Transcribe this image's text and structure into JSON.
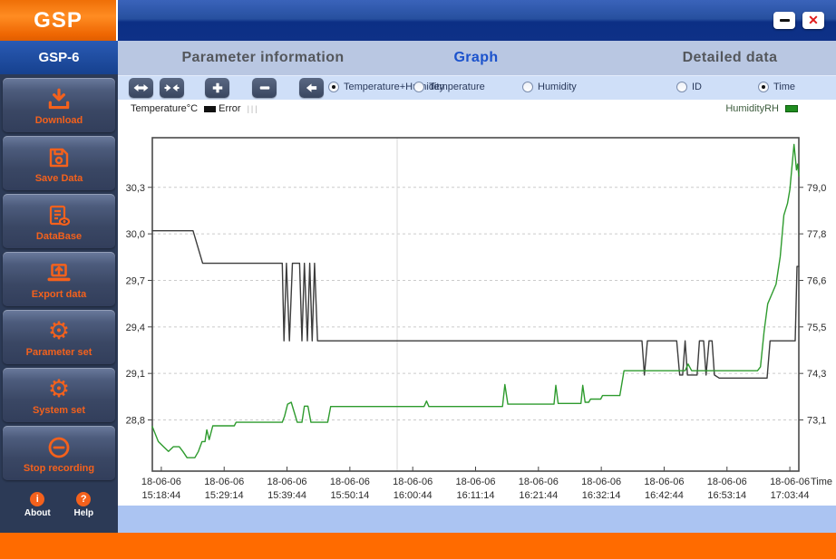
{
  "window": {
    "minimize_glyph": "",
    "close_glyph": "✕"
  },
  "sidebar": {
    "logo": "GSP",
    "model": "GSP-6",
    "items": [
      {
        "label": "Download",
        "icon": "download-icon"
      },
      {
        "label": "Save Data",
        "icon": "save-icon"
      },
      {
        "label": "DataBase",
        "icon": "database-icon"
      },
      {
        "label": "Export data",
        "icon": "export-icon"
      },
      {
        "label": "Parameter set",
        "icon": "parameter-gear-icon"
      },
      {
        "label": "System set",
        "icon": "system-gear-icon"
      },
      {
        "label": "Stop recording",
        "icon": "stop-recording-icon"
      }
    ],
    "gear_glyph": "⚙",
    "footer": [
      {
        "label": "About",
        "glyph": "i"
      },
      {
        "label": "Help",
        "glyph": "?"
      }
    ]
  },
  "tabs": [
    {
      "label": "Parameter information",
      "active": false
    },
    {
      "label": "Graph",
      "active": true
    },
    {
      "label": "Detailed data",
      "active": false
    }
  ],
  "toolbar": {
    "buttons": [
      "expand-horizontal",
      "collapse-horizontal",
      "zoom-in",
      "zoom-out",
      "back"
    ],
    "series_radios": [
      {
        "label": "Temperature+Humidity",
        "checked": true
      },
      {
        "label": "Temperature",
        "checked": false
      },
      {
        "label": "Humidity",
        "checked": false
      }
    ],
    "sort_radios": [
      {
        "label": "ID",
        "checked": false
      },
      {
        "label": "Time",
        "checked": true
      }
    ]
  },
  "legend": {
    "temperature_label": "Temperature°C",
    "error_label": "Error",
    "error_marks": "|||",
    "humidity_label": "HumidityRH"
  },
  "colors": {
    "accent_orange": "#f4611c",
    "active_tab_blue": "#1b52cc",
    "temperature_line": "#3c3c3c",
    "humidity_line": "#2e9b2e",
    "footer_orange": "#ff6b00",
    "footer_blue": "#abc4f2"
  },
  "chart_data": {
    "type": "line",
    "xlabel": "Time",
    "xlim": [
      -1.5,
      106.5
    ],
    "temp_ylim": [
      28.47,
      30.62
    ],
    "hum_ylim": [
      71.8,
      80.27
    ],
    "cursor_t": 39.4,
    "y_gridlines": [
      {
        "temp": 30.3,
        "left_label": "30,3",
        "right_label": "79,0"
      },
      {
        "temp": 30.0,
        "left_label": "30,0",
        "right_label": "77,8"
      },
      {
        "temp": 29.7,
        "left_label": "29,7",
        "right_label": "76,6"
      },
      {
        "temp": 29.4,
        "left_label": "29,4",
        "right_label": "75,5"
      },
      {
        "temp": 29.1,
        "left_label": "29,1",
        "right_label": "74,3"
      },
      {
        "temp": 28.8,
        "left_label": "28,8",
        "right_label": "73,1"
      }
    ],
    "x_ticks": [
      {
        "t": 0,
        "date": "18-06-06",
        "time": "15:18:44"
      },
      {
        "t": 10.5,
        "date": "18-06-06",
        "time": "15:29:14"
      },
      {
        "t": 21,
        "date": "18-06-06",
        "time": "15:39:44"
      },
      {
        "t": 31.5,
        "date": "18-06-06",
        "time": "15:50:14"
      },
      {
        "t": 42,
        "date": "18-06-06",
        "time": "16:00:44"
      },
      {
        "t": 52.5,
        "date": "18-06-06",
        "time": "16:11:14"
      },
      {
        "t": 63,
        "date": "18-06-06",
        "time": "16:21:44"
      },
      {
        "t": 73.5,
        "date": "18-06-06",
        "time": "16:32:14"
      },
      {
        "t": 84,
        "date": "18-06-06",
        "time": "16:42:44"
      },
      {
        "t": 94.5,
        "date": "18-06-06",
        "time": "16:53:14"
      },
      {
        "t": 105,
        "date": "18-06-06",
        "time": "17:03:44"
      }
    ],
    "series": [
      {
        "name": "Temperature",
        "unit": "°C",
        "axis": "temp",
        "color": "#3c3c3c",
        "points": [
          [
            -1.5,
            30.02
          ],
          [
            5.3,
            30.02
          ],
          [
            6.9,
            29.81
          ],
          [
            20.2,
            29.81
          ],
          [
            20.5,
            29.31
          ],
          [
            20.9,
            29.81
          ],
          [
            21.4,
            29.31
          ],
          [
            21.9,
            29.81
          ],
          [
            23.1,
            29.81
          ],
          [
            23.5,
            29.31
          ],
          [
            23.9,
            29.81
          ],
          [
            24.4,
            29.31
          ],
          [
            24.8,
            29.81
          ],
          [
            25.2,
            29.31
          ],
          [
            25.6,
            29.81
          ],
          [
            26.1,
            29.31
          ],
          [
            80.3,
            29.31
          ],
          [
            80.7,
            29.09
          ],
          [
            81.2,
            29.31
          ],
          [
            86.1,
            29.31
          ],
          [
            86.6,
            29.09
          ],
          [
            87.1,
            29.09
          ],
          [
            87.5,
            29.31
          ],
          [
            87.9,
            29.09
          ],
          [
            89.5,
            29.09
          ],
          [
            89.9,
            29.31
          ],
          [
            90.6,
            29.31
          ],
          [
            91.0,
            29.09
          ],
          [
            91.5,
            29.31
          ],
          [
            92.0,
            29.31
          ],
          [
            92.4,
            29.09
          ],
          [
            93.2,
            29.07
          ],
          [
            101.2,
            29.07
          ],
          [
            101.7,
            29.31
          ],
          [
            105.9,
            29.31
          ],
          [
            106.2,
            29.79
          ],
          [
            106.5,
            29.79
          ]
        ]
      },
      {
        "name": "Humidity",
        "unit": "%RH",
        "axis": "hum",
        "color": "#2e9b2e",
        "points": [
          [
            -1.5,
            72.93
          ],
          [
            -0.5,
            72.55
          ],
          [
            0.5,
            72.4
          ],
          [
            1.2,
            72.3
          ],
          [
            2.0,
            72.42
          ],
          [
            3.0,
            72.42
          ],
          [
            3.6,
            72.3
          ],
          [
            4.3,
            72.14
          ],
          [
            5.6,
            72.14
          ],
          [
            6.2,
            72.3
          ],
          [
            6.8,
            72.55
          ],
          [
            7.3,
            72.55
          ],
          [
            7.6,
            72.85
          ],
          [
            8.0,
            72.6
          ],
          [
            8.6,
            72.95
          ],
          [
            12.2,
            72.95
          ],
          [
            12.5,
            73.04
          ],
          [
            20.2,
            73.04
          ],
          [
            20.6,
            73.2
          ],
          [
            21.1,
            73.5
          ],
          [
            21.7,
            73.55
          ],
          [
            22.3,
            73.25
          ],
          [
            22.7,
            73.04
          ],
          [
            23.5,
            73.04
          ],
          [
            23.9,
            73.45
          ],
          [
            24.5,
            73.45
          ],
          [
            25.0,
            73.04
          ],
          [
            27.8,
            73.04
          ],
          [
            28.3,
            73.44
          ],
          [
            43.9,
            73.44
          ],
          [
            44.3,
            73.58
          ],
          [
            44.7,
            73.44
          ],
          [
            57.0,
            73.44
          ],
          [
            57.4,
            74.0
          ],
          [
            57.9,
            73.5
          ],
          [
            65.6,
            73.5
          ],
          [
            65.9,
            73.98
          ],
          [
            66.3,
            73.52
          ],
          [
            70.1,
            73.52
          ],
          [
            70.4,
            73.98
          ],
          [
            70.8,
            73.55
          ],
          [
            71.4,
            73.55
          ],
          [
            71.7,
            73.63
          ],
          [
            73.4,
            73.63
          ],
          [
            73.7,
            73.72
          ],
          [
            76.6,
            73.72
          ],
          [
            77.3,
            74.35
          ],
          [
            87.5,
            74.35
          ],
          [
            88.0,
            74.52
          ],
          [
            88.6,
            74.35
          ],
          [
            99.6,
            74.35
          ],
          [
            100.1,
            74.45
          ],
          [
            100.7,
            75.35
          ],
          [
            101.3,
            76.05
          ],
          [
            102.0,
            76.3
          ],
          [
            102.7,
            76.55
          ],
          [
            103.4,
            77.25
          ],
          [
            104.0,
            78.3
          ],
          [
            104.6,
            78.6
          ],
          [
            105.0,
            78.95
          ],
          [
            105.4,
            79.6
          ],
          [
            105.7,
            80.1
          ],
          [
            105.9,
            79.8
          ],
          [
            106.1,
            79.45
          ],
          [
            106.3,
            79.6
          ],
          [
            106.5,
            79.3
          ]
        ]
      }
    ]
  }
}
